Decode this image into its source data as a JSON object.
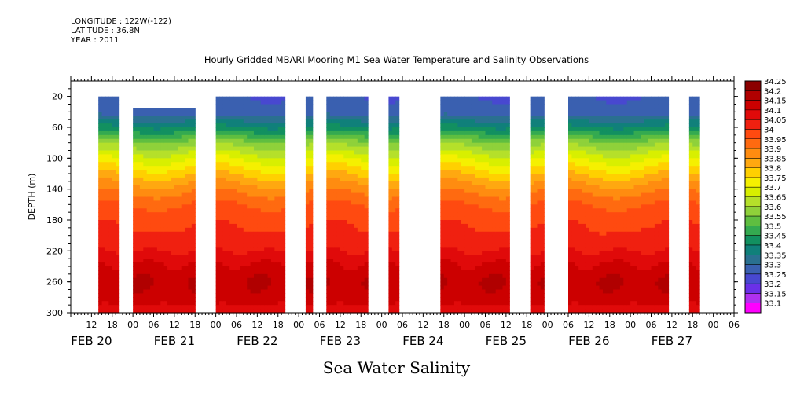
{
  "header": {
    "longitude": "LONGITUDE : 122W(-122)",
    "latitude": "LATITUDE : 36.8N",
    "year": "YEAR : 2011"
  },
  "chart_data": {
    "type": "heatmap",
    "title": "Hourly Gridded MBARI Mooring M1 Sea Water Temperature and Salinity Observations",
    "bottom_title": "Sea Water Salinity",
    "ylabel": "DEPTH (m)",
    "y_ticks": [
      20,
      60,
      100,
      140,
      180,
      220,
      260,
      300
    ],
    "ylim": [
      300,
      0
    ],
    "x_range_hours": [
      0,
      192
    ],
    "x_hour_labels": [
      "12",
      "18",
      "00",
      "06",
      "12",
      "18",
      "00",
      "06",
      "12",
      "18",
      "00",
      "06",
      "12",
      "18",
      "00",
      "06",
      "12",
      "18",
      "00",
      "06",
      "12",
      "18",
      "00",
      "06",
      "12",
      "18",
      "00",
      "06",
      "12",
      "18",
      "00",
      "06"
    ],
    "x_date_labels": [
      {
        "label": "FEB 20",
        "hour": 6
      },
      {
        "label": "FEB 21",
        "hour": 30
      },
      {
        "label": "FEB 22",
        "hour": 54
      },
      {
        "label": "FEB 23",
        "hour": 78
      },
      {
        "label": "FEB 24",
        "hour": 102
      },
      {
        "label": "FEB 25",
        "hour": 126
      },
      {
        "label": "FEB 26",
        "hour": 150
      },
      {
        "label": "FEB 27",
        "hour": 174
      }
    ],
    "colorbar": {
      "labels": [
        "34.25",
        "34.2",
        "34.15",
        "34.1",
        "34.05",
        "34",
        "33.95",
        "33.9",
        "33.85",
        "33.8",
        "33.75",
        "33.7",
        "33.65",
        "33.6",
        "33.55",
        "33.5",
        "33.45",
        "33.4",
        "33.35",
        "33.3",
        "33.25",
        "33.2",
        "33.15",
        "33.1"
      ],
      "colors": [
        "#8b0000",
        "#b00000",
        "#cc0000",
        "#e00a0a",
        "#f02010",
        "#ff4a10",
        "#ff6a10",
        "#ff8c10",
        "#ffa810",
        "#ffd000",
        "#f5f000",
        "#d8ef00",
        "#b5e02a",
        "#8fd13a",
        "#5fbe40",
        "#34aa50",
        "#129060",
        "#10807a",
        "#2a7090",
        "#3a60b0",
        "#4848d0",
        "#6a30e8",
        "#b030f0",
        "#ff00ff"
      ]
    },
    "data_segments_hours": [
      {
        "start": 8,
        "end": 14,
        "top_depth": 20
      },
      {
        "start": 18,
        "end": 36,
        "top_depth": 35
      },
      {
        "start": 42,
        "end": 62,
        "top_depth": 20
      },
      {
        "start": 68,
        "end": 70,
        "top_depth": 20
      },
      {
        "start": 74,
        "end": 86,
        "top_depth": 20
      },
      {
        "start": 92,
        "end": 95,
        "top_depth": 20
      },
      {
        "start": 107,
        "end": 127,
        "top_depth": 20
      },
      {
        "start": 133,
        "end": 137,
        "top_depth": 20
      },
      {
        "start": 144,
        "end": 173,
        "top_depth": 20
      },
      {
        "start": 179,
        "end": 182,
        "top_depth": 20
      }
    ],
    "depth_profile": [
      {
        "depth": 20,
        "value": 33.3
      },
      {
        "depth": 40,
        "value": 33.32
      },
      {
        "depth": 60,
        "value": 33.45
      },
      {
        "depth": 80,
        "value": 33.62
      },
      {
        "depth": 100,
        "value": 33.74
      },
      {
        "depth": 120,
        "value": 33.84
      },
      {
        "depth": 140,
        "value": 33.93
      },
      {
        "depth": 160,
        "value": 34.0
      },
      {
        "depth": 180,
        "value": 34.04
      },
      {
        "depth": 200,
        "value": 34.06
      },
      {
        "depth": 220,
        "value": 34.1
      },
      {
        "depth": 240,
        "value": 34.16
      },
      {
        "depth": 260,
        "value": 34.2
      },
      {
        "depth": 280,
        "value": 34.18
      },
      {
        "depth": 300,
        "value": 34.12
      }
    ]
  }
}
